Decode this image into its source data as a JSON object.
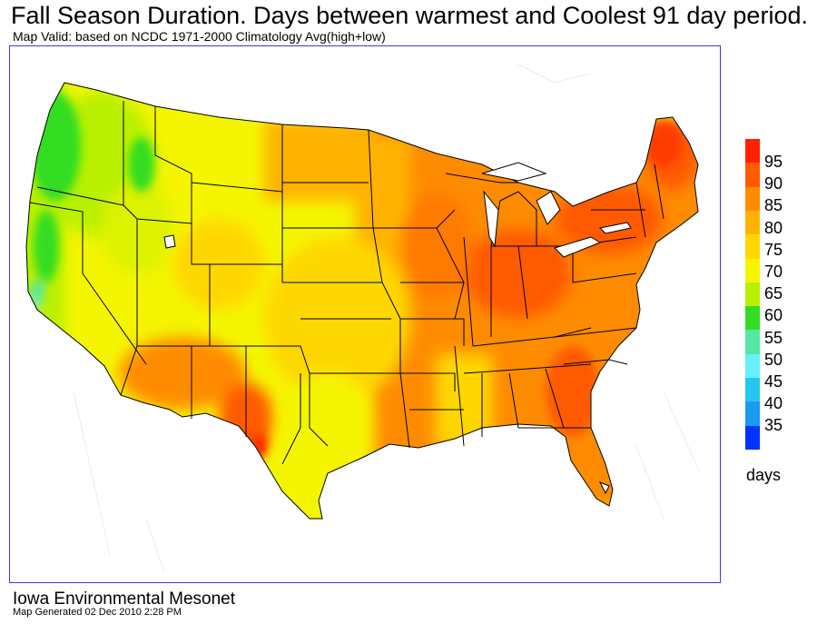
{
  "header": {
    "title": "Fall Season Duration. Days between warmest and Coolest 91 day period.",
    "subtitle": "Map Valid: based on NCDC 1971-2000 Climatology Avg(high+low)"
  },
  "legend": {
    "levels": [
      {
        "label": "95",
        "color": "#ff2200"
      },
      {
        "label": "90",
        "color": "#ff5a00"
      },
      {
        "label": "85",
        "color": "#ff8c00"
      },
      {
        "label": "80",
        "color": "#ffb300"
      },
      {
        "label": "75",
        "color": "#ffd700"
      },
      {
        "label": "70",
        "color": "#f5f500"
      },
      {
        "label": "65",
        "color": "#b8f000"
      },
      {
        "label": "60",
        "color": "#33dd22"
      },
      {
        "label": "55",
        "color": "#55e8a0"
      },
      {
        "label": "50",
        "color": "#66f0ff"
      },
      {
        "label": "45",
        "color": "#22c8f0"
      },
      {
        "label": "40",
        "color": "#1a9af0"
      },
      {
        "label": "35",
        "color": "#0033ff"
      }
    ],
    "unit": "days"
  },
  "footer": {
    "org": "Iowa Environmental Mesonet",
    "generated": "Map Generated 02 Dec 2010 2:28 PM"
  }
}
